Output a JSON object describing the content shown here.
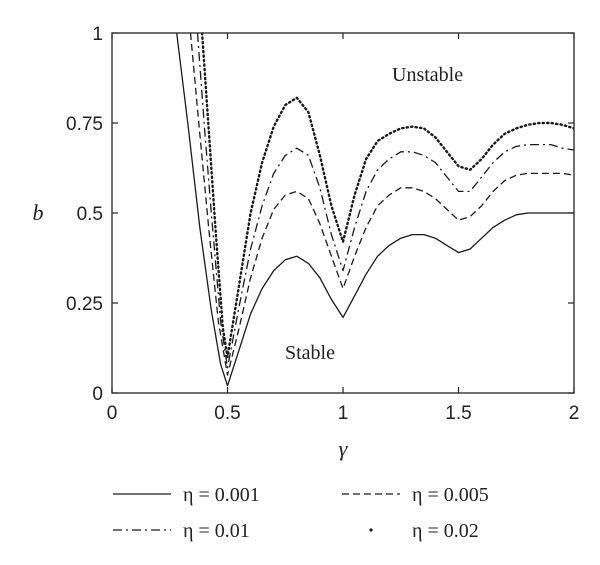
{
  "chart_data": {
    "type": "line",
    "xlabel": "γ",
    "ylabel": "b",
    "xlim": [
      0,
      2
    ],
    "ylim": [
      0,
      1
    ],
    "xticks": [
      "0",
      "0.5",
      "1",
      "1.5",
      "2"
    ],
    "yticks": [
      "0",
      "0.25",
      "0.5",
      "0.75",
      "1"
    ],
    "grid": false,
    "legend_position": "bottom",
    "annotations": [
      {
        "text": "Unstable",
        "x": 1.45,
        "y": 0.88
      },
      {
        "text": "Stable",
        "x": 0.97,
        "y": 0.1
      }
    ],
    "series": [
      {
        "name": "η = 0.001",
        "style": "solid",
        "x": [
          0.28,
          0.33,
          0.38,
          0.43,
          0.47,
          0.5,
          0.55,
          0.6,
          0.65,
          0.7,
          0.75,
          0.8,
          0.85,
          0.9,
          0.95,
          1.0,
          1.05,
          1.1,
          1.15,
          1.2,
          1.25,
          1.3,
          1.35,
          1.4,
          1.45,
          1.5,
          1.55,
          1.6,
          1.65,
          1.7,
          1.75,
          1.8,
          1.85,
          1.9,
          1.95,
          2.0
        ],
        "y": [
          1.0,
          0.74,
          0.46,
          0.23,
          0.08,
          0.02,
          0.12,
          0.22,
          0.29,
          0.34,
          0.37,
          0.38,
          0.36,
          0.32,
          0.26,
          0.21,
          0.27,
          0.33,
          0.38,
          0.41,
          0.43,
          0.44,
          0.44,
          0.43,
          0.41,
          0.39,
          0.4,
          0.43,
          0.46,
          0.48,
          0.495,
          0.5,
          0.5,
          0.5,
          0.5,
          0.5
        ]
      },
      {
        "name": "η = 0.005",
        "style": "dashed",
        "x": [
          0.34,
          0.38,
          0.42,
          0.46,
          0.5,
          0.55,
          0.6,
          0.65,
          0.7,
          0.75,
          0.8,
          0.85,
          0.9,
          0.95,
          1.0,
          1.05,
          1.1,
          1.15,
          1.2,
          1.25,
          1.3,
          1.35,
          1.4,
          1.45,
          1.5,
          1.55,
          1.6,
          1.65,
          1.7,
          1.75,
          1.8,
          1.85,
          1.9,
          1.95,
          2.0
        ],
        "y": [
          1.0,
          0.72,
          0.45,
          0.2,
          0.05,
          0.18,
          0.32,
          0.43,
          0.51,
          0.55,
          0.56,
          0.54,
          0.47,
          0.38,
          0.29,
          0.38,
          0.46,
          0.52,
          0.55,
          0.57,
          0.57,
          0.56,
          0.54,
          0.51,
          0.48,
          0.49,
          0.52,
          0.56,
          0.59,
          0.605,
          0.61,
          0.61,
          0.61,
          0.61,
          0.605
        ]
      },
      {
        "name": "η = 0.01",
        "style": "dashdot",
        "x": [
          0.37,
          0.4,
          0.43,
          0.47,
          0.5,
          0.55,
          0.6,
          0.65,
          0.7,
          0.75,
          0.8,
          0.85,
          0.9,
          0.95,
          1.0,
          1.05,
          1.1,
          1.15,
          1.2,
          1.25,
          1.3,
          1.35,
          1.4,
          1.45,
          1.5,
          1.55,
          1.6,
          1.65,
          1.7,
          1.75,
          1.8,
          1.85,
          1.9,
          1.95,
          2.0
        ],
        "y": [
          1.0,
          0.74,
          0.5,
          0.2,
          0.07,
          0.24,
          0.4,
          0.52,
          0.61,
          0.66,
          0.68,
          0.66,
          0.57,
          0.44,
          0.34,
          0.46,
          0.56,
          0.62,
          0.65,
          0.67,
          0.67,
          0.66,
          0.64,
          0.6,
          0.56,
          0.56,
          0.6,
          0.64,
          0.67,
          0.685,
          0.69,
          0.69,
          0.69,
          0.68,
          0.675
        ]
      },
      {
        "name": "η = 0.02",
        "style": "dotted",
        "x": [
          0.39,
          0.42,
          0.45,
          0.48,
          0.5,
          0.55,
          0.6,
          0.65,
          0.7,
          0.75,
          0.8,
          0.85,
          0.9,
          0.95,
          1.0,
          1.05,
          1.1,
          1.15,
          1.2,
          1.25,
          1.3,
          1.35,
          1.4,
          1.45,
          1.5,
          1.55,
          1.6,
          1.65,
          1.7,
          1.75,
          1.8,
          1.85,
          1.9,
          1.95,
          2.0
        ],
        "y": [
          1.0,
          0.72,
          0.44,
          0.18,
          0.1,
          0.3,
          0.5,
          0.64,
          0.74,
          0.8,
          0.82,
          0.78,
          0.66,
          0.52,
          0.42,
          0.55,
          0.65,
          0.7,
          0.72,
          0.735,
          0.74,
          0.735,
          0.71,
          0.67,
          0.63,
          0.62,
          0.65,
          0.69,
          0.72,
          0.735,
          0.745,
          0.75,
          0.75,
          0.745,
          0.735
        ]
      }
    ]
  }
}
